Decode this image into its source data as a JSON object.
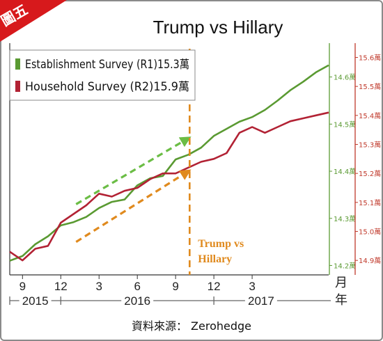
{
  "badge": {
    "text": "圖五",
    "color": "#d7191c"
  },
  "chart_data": {
    "type": "line",
    "title": "Trump vs Hillary",
    "x": [
      0,
      1,
      2,
      3,
      4,
      5,
      6,
      7,
      8,
      9,
      10,
      11,
      12,
      13,
      14,
      15,
      16,
      17,
      18,
      19,
      20,
      21,
      22,
      23,
      24,
      25
    ],
    "x_range": [
      0,
      25
    ],
    "x_ticks": [
      {
        "x": 1,
        "label": "9"
      },
      {
        "x": 4,
        "label": "12"
      },
      {
        "x": 7,
        "label": "3"
      },
      {
        "x": 10,
        "label": "6"
      },
      {
        "x": 13,
        "label": "9"
      },
      {
        "x": 16,
        "label": "12"
      },
      {
        "x": 19,
        "label": "3"
      }
    ],
    "x_unit_label": "月\n年",
    "year_labels": [
      {
        "label": "2015",
        "from": 0,
        "to": 4
      },
      {
        "label": "2016",
        "from": 4,
        "to": 16
      },
      {
        "label": "2017",
        "from": 16,
        "to": 25
      }
    ],
    "series": [
      {
        "name": "Establishment Survey (R1)15.3萬",
        "color": "#5a9a32",
        "axis": "r1",
        "values": [
          14.21,
          14.22,
          14.245,
          14.262,
          14.285,
          14.292,
          14.303,
          14.322,
          14.335,
          14.34,
          14.37,
          14.385,
          14.39,
          14.425,
          14.435,
          14.45,
          14.475,
          14.49,
          14.505,
          14.515,
          14.53,
          14.55,
          14.572,
          14.59,
          14.61,
          14.625
        ]
      },
      {
        "name": "Household Survey (R2)15.9萬",
        "color": "#b22234",
        "axis": "r2",
        "values": [
          14.93,
          14.9,
          14.94,
          14.95,
          15.03,
          15.06,
          15.09,
          15.13,
          15.12,
          15.14,
          15.15,
          15.18,
          15.2,
          15.2,
          15.22,
          15.24,
          15.25,
          15.27,
          15.34,
          15.36,
          15.34,
          15.36,
          15.38,
          15.39,
          15.4,
          15.41
        ]
      }
    ],
    "axes": {
      "r1": {
        "color": "#5a9a32",
        "ylim": [
          14.18,
          14.66
        ],
        "ticks": [
          14.2,
          14.3,
          14.4,
          14.5,
          14.6
        ],
        "tick_labels": [
          "14.2萬",
          "14.3萬",
          "14.4萬",
          "14.5萬",
          "14.6萬"
        ]
      },
      "r2": {
        "color": "#c0392b",
        "ylim": [
          14.85,
          15.63
        ],
        "ticks": [
          14.9,
          15.0,
          15.1,
          15.2,
          15.3,
          15.4,
          15.5,
          15.6
        ],
        "tick_labels": [
          "14.9萬",
          "15.0萬",
          "15.1萬",
          "15.2萬",
          "15.3萬",
          "15.4萬",
          "15.5萬",
          "15.6萬"
        ]
      }
    },
    "annotations": {
      "election_line_x": 14.1,
      "election_label": "Trump vs\nHillary",
      "election_color": "#e08a1e",
      "trend_green": {
        "from": [
          5.2,
          14.33
        ],
        "to": [
          14.0,
          14.47
        ],
        "axis": "r1",
        "color": "#6bbd45"
      },
      "trend_orange": {
        "from": [
          5.2,
          14.25
        ],
        "to": [
          14.0,
          14.4
        ],
        "axis": "r1",
        "color": "#e08a1e"
      }
    },
    "legend_position": "top-left",
    "grid": false
  },
  "source": "資料來源： Zerohedge"
}
